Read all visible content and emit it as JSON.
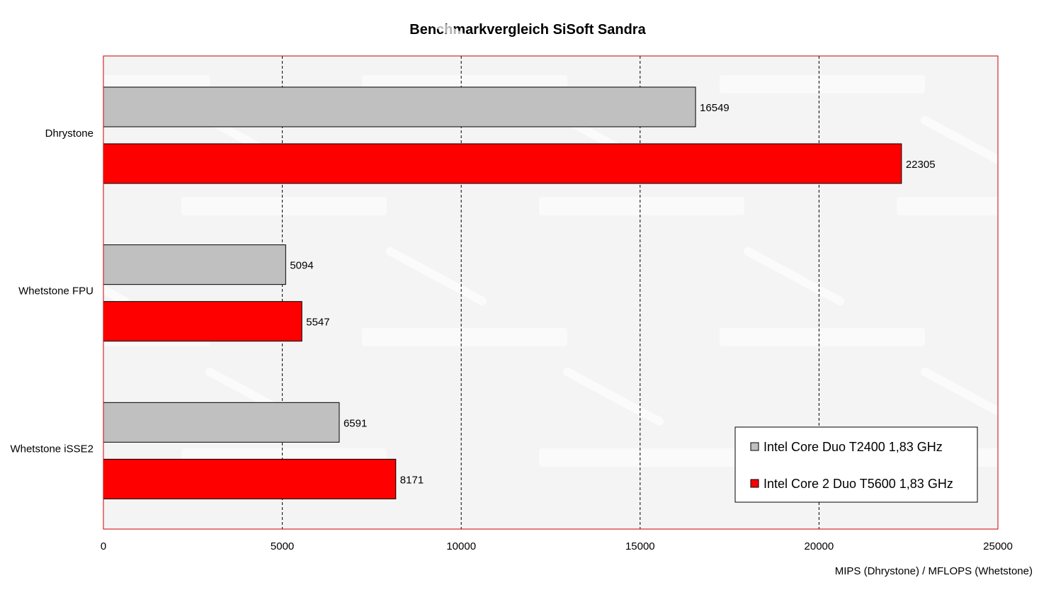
{
  "chart_data": {
    "type": "bar",
    "orientation": "horizontal",
    "title": "Benchmarkvergleich SiSoft Sandra",
    "xlabel": "MIPS (Dhrystone) / MFLOPS (Whetstone)",
    "ylabel": "",
    "categories": [
      "Dhrystone",
      "Whetstone FPU",
      "Whetstone iSSE2"
    ],
    "series": [
      {
        "name": "Intel Core Duo T2400 1,83 GHz",
        "color": "#c0c0c0",
        "values": [
          16549,
          5094,
          6591
        ]
      },
      {
        "name": "Intel Core 2 Duo T5600 1,83 GHz",
        "color": "#ff0000",
        "values": [
          22305,
          5547,
          8171
        ]
      }
    ],
    "xlim": [
      0,
      25000
    ],
    "xticks": [
      0,
      5000,
      10000,
      15000,
      20000,
      25000
    ],
    "grid": "vertical-dashed",
    "legend_position": "bottom-right",
    "plot_border_color": "#cc0000",
    "plot_background": "#f4f4f4"
  }
}
